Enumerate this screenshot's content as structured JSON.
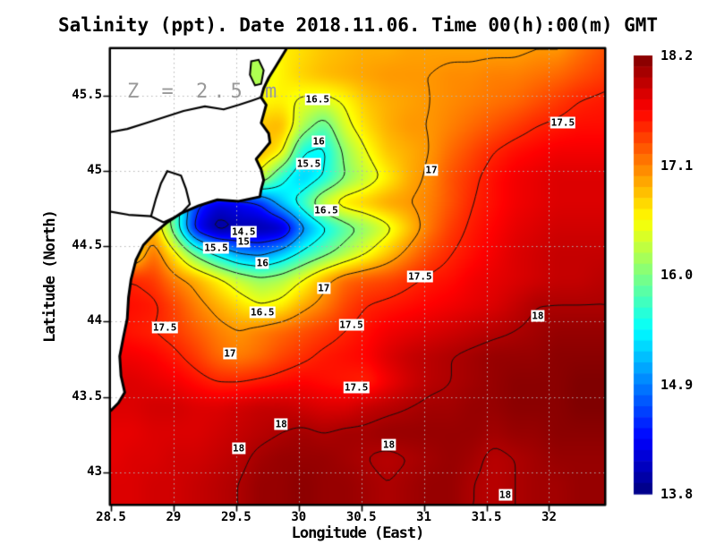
{
  "title": "Salinity (ppt). Date 2018.11.06. Time 00(h):00(m) GMT",
  "axes": {
    "x": {
      "label": "Longitude (East)",
      "ticks": [
        {
          "value": 28.5,
          "label": "28.5"
        },
        {
          "value": 29,
          "label": "29"
        },
        {
          "value": 29.5,
          "label": "29.5"
        },
        {
          "value": 30,
          "label": "30"
        },
        {
          "value": 30.5,
          "label": "30.5"
        },
        {
          "value": 31,
          "label": "31"
        },
        {
          "value": 31.5,
          "label": "31.5"
        },
        {
          "value": 32,
          "label": "32"
        }
      ]
    },
    "y": {
      "label": "Latitude (North)",
      "ticks": [
        {
          "value": 45.5,
          "label": "45.5"
        },
        {
          "value": 45,
          "label": "45"
        },
        {
          "value": 44.5,
          "label": "44.5"
        },
        {
          "value": 44,
          "label": "44"
        },
        {
          "value": 43.5,
          "label": "43.5"
        },
        {
          "value": 43,
          "label": "43"
        }
      ]
    }
  },
  "colorbar": {
    "min": 13.8,
    "max": 18.2,
    "steps": 40,
    "ticks": [
      {
        "value": 18.2,
        "label": "18.2"
      },
      {
        "value": 17.1,
        "label": "17.1"
      },
      {
        "value": 16.0,
        "label": "16.0"
      },
      {
        "value": 14.9,
        "label": "14.9"
      },
      {
        "value": 13.8,
        "label": "13.8"
      }
    ]
  },
  "chart_data": {
    "type": "heatmap",
    "variable": "Salinity (ppt)",
    "depth_annotation": "Z = 2.5 m",
    "lon_range": [
      28.5,
      32.44
    ],
    "lat_range": [
      42.79,
      45.81
    ],
    "colormap": "jet",
    "color_range": [
      13.8,
      18.2
    ],
    "land_color": "#ffffff",
    "gridline_color": "#b5b5b5",
    "gridline_lons": [
      29,
      29.5,
      30,
      30.5,
      31,
      31.5,
      32
    ],
    "gridline_lats": [
      43,
      43.5,
      44,
      44.5,
      45,
      45.5
    ],
    "contour_levels": [
      14,
      14.5,
      15,
      15.5,
      16,
      16.5,
      17,
      17.5,
      18
    ],
    "grid": {
      "lons": [
        28.5,
        28.67,
        28.84,
        29.01,
        29.18,
        29.35,
        29.52,
        29.69,
        29.86,
        30.03,
        30.2,
        30.37,
        30.54,
        30.71,
        30.88,
        31.05,
        31.22,
        31.39,
        31.56,
        31.73,
        31.9,
        32.07,
        32.24,
        32.44
      ],
      "lats": [
        45.81,
        45.64,
        45.47,
        45.3,
        45.13,
        44.96,
        44.79,
        44.62,
        44.45,
        44.28,
        44.11,
        43.94,
        43.77,
        43.6,
        43.43,
        43.26,
        43.09,
        42.92,
        42.79
      ],
      "values": [
        [
          16.6,
          16.6,
          16.6,
          16.6,
          16.6,
          16.6,
          16.3,
          16.2,
          16.6,
          16.7,
          16.8,
          16.85,
          16.9,
          16.9,
          16.95,
          16.95,
          16.95,
          16.95,
          16.95,
          16.95,
          17.0,
          17.0,
          17.15,
          17.3
        ],
        [
          16.6,
          16.6,
          16.6,
          16.6,
          16.6,
          16.6,
          16.35,
          16.4,
          16.6,
          16.75,
          16.85,
          16.9,
          16.95,
          17.0,
          17.0,
          17.0,
          17.05,
          17.05,
          17.1,
          17.1,
          17.15,
          17.2,
          17.3,
          17.4
        ],
        [
          16.6,
          16.6,
          16.6,
          16.6,
          16.6,
          16.6,
          16.5,
          16.55,
          16.6,
          16.45,
          16.4,
          16.55,
          16.8,
          16.9,
          16.95,
          17.0,
          17.05,
          17.1,
          17.15,
          17.2,
          17.3,
          17.4,
          17.5,
          17.55
        ],
        [
          16.6,
          16.6,
          16.6,
          16.6,
          16.6,
          16.6,
          16.6,
          16.8,
          16.9,
          16.2,
          15.8,
          16.4,
          16.7,
          16.9,
          17.0,
          17.0,
          17.1,
          17.2,
          17.3,
          17.4,
          17.5,
          17.55,
          17.6,
          17.6
        ],
        [
          16.6,
          16.6,
          16.6,
          16.6,
          16.6,
          16.6,
          16.6,
          16.9,
          16.6,
          15.5,
          15.4,
          16.1,
          16.5,
          16.8,
          16.9,
          17.0,
          17.2,
          17.35,
          17.5,
          17.6,
          17.65,
          17.7,
          17.7,
          17.7
        ],
        [
          16.6,
          16.6,
          16.6,
          16.6,
          16.6,
          16.6,
          16.6,
          16.4,
          15.6,
          15.2,
          15.5,
          16.0,
          16.3,
          16.6,
          16.9,
          17.05,
          17.3,
          17.45,
          17.6,
          17.7,
          17.75,
          17.8,
          17.8,
          17.8
        ],
        [
          16.6,
          16.6,
          16.6,
          15.8,
          14.6,
          14.2,
          14.3,
          14.5,
          15.2,
          15.7,
          16.4,
          16.7,
          16.8,
          16.95,
          17.0,
          17.1,
          17.3,
          17.5,
          17.6,
          17.7,
          17.75,
          17.8,
          17.8,
          17.8
        ],
        [
          16.6,
          16.6,
          16.9,
          15.8,
          14.3,
          13.85,
          14.0,
          13.95,
          14.0,
          14.9,
          15.4,
          15.8,
          16.1,
          16.4,
          16.8,
          17.15,
          17.4,
          17.55,
          17.65,
          17.75,
          17.8,
          17.85,
          17.85,
          17.85
        ],
        [
          16.6,
          16.6,
          17.2,
          16.6,
          15.9,
          15.4,
          15.0,
          14.9,
          15.2,
          15.6,
          15.9,
          16.2,
          16.5,
          16.8,
          17.1,
          17.35,
          17.5,
          17.6,
          17.7,
          17.8,
          17.85,
          17.9,
          17.9,
          17.9
        ],
        [
          17.5,
          17.5,
          17.4,
          17.1,
          16.9,
          16.6,
          16.3,
          16.1,
          16.2,
          16.5,
          16.9,
          17.2,
          17.3,
          17.35,
          17.45,
          17.55,
          17.6,
          17.7,
          17.75,
          17.8,
          17.85,
          17.9,
          17.9,
          17.95
        ],
        [
          17.6,
          17.6,
          17.55,
          17.35,
          17.1,
          16.9,
          16.7,
          16.5,
          16.6,
          16.9,
          17.1,
          17.35,
          17.5,
          17.55,
          17.6,
          17.65,
          17.7,
          17.75,
          17.8,
          17.9,
          18.0,
          18.0,
          18.0,
          18.0
        ],
        [
          17.6,
          17.55,
          17.5,
          17.4,
          17.25,
          17.1,
          17.0,
          17.1,
          17.2,
          17.3,
          17.4,
          17.5,
          17.6,
          17.7,
          17.75,
          17.8,
          17.85,
          17.9,
          17.95,
          18.0,
          18.05,
          18.1,
          18.1,
          18.1
        ],
        [
          17.7,
          17.7,
          17.65,
          17.55,
          17.4,
          17.2,
          17.1,
          17.2,
          17.35,
          17.45,
          17.55,
          17.6,
          17.65,
          17.8,
          17.9,
          17.95,
          18.0,
          18.05,
          18.1,
          18.1,
          18.1,
          18.15,
          18.15,
          18.15
        ],
        [
          17.8,
          17.8,
          17.75,
          17.7,
          17.6,
          17.5,
          17.5,
          17.55,
          17.6,
          17.65,
          17.6,
          17.55,
          17.5,
          17.7,
          17.85,
          17.95,
          18.0,
          18.05,
          18.1,
          18.15,
          18.15,
          18.15,
          18.2,
          18.2
        ],
        [
          17.8,
          17.8,
          17.85,
          17.85,
          17.8,
          17.8,
          17.85,
          17.9,
          17.9,
          17.85,
          17.8,
          17.8,
          17.9,
          17.95,
          18.0,
          18.05,
          18.05,
          18.1,
          18.1,
          18.15,
          18.15,
          18.15,
          18.2,
          18.2
        ],
        [
          17.75,
          17.75,
          17.8,
          17.8,
          17.8,
          17.85,
          17.9,
          17.95,
          18.0,
          18.05,
          18.0,
          18.05,
          18.05,
          18.1,
          18.1,
          18.1,
          18.1,
          18.1,
          18.05,
          18.1,
          18.1,
          18.15,
          18.15,
          18.15
        ],
        [
          17.75,
          17.8,
          17.8,
          17.85,
          17.85,
          17.9,
          17.95,
          18.05,
          18.1,
          18.1,
          18.1,
          18.05,
          18.0,
          17.95,
          18.0,
          18.05,
          18.1,
          18.05,
          17.95,
          18.0,
          18.05,
          18.1,
          18.1,
          18.1
        ],
        [
          17.8,
          17.8,
          17.85,
          17.85,
          17.9,
          17.95,
          18.0,
          18.1,
          18.1,
          18.15,
          18.1,
          18.1,
          18.05,
          18.0,
          18.05,
          18.1,
          18.1,
          18.0,
          17.95,
          18.0,
          18.05,
          18.05,
          18.1,
          18.1
        ],
        [
          17.8,
          17.8,
          17.85,
          17.85,
          17.9,
          17.95,
          18.0,
          18.1,
          18.1,
          18.15,
          18.1,
          18.1,
          18.05,
          18.0,
          18.05,
          18.1,
          18.1,
          18.0,
          17.95,
          18.0,
          18.05,
          18.05,
          18.1,
          18.1
        ]
      ]
    },
    "contour_labels": [
      {
        "lon": 30.15,
        "lat": 45.48,
        "text": "16.5"
      },
      {
        "lon": 30.16,
        "lat": 45.2,
        "text": "16"
      },
      {
        "lon": 30.08,
        "lat": 45.05,
        "text": "15.5"
      },
      {
        "lon": 30.22,
        "lat": 44.74,
        "text": "16.5"
      },
      {
        "lon": 31.06,
        "lat": 45.01,
        "text": "17"
      },
      {
        "lon": 32.11,
        "lat": 45.32,
        "text": "17.5"
      },
      {
        "lon": 29.56,
        "lat": 44.6,
        "text": "14.5"
      },
      {
        "lon": 29.56,
        "lat": 44.53,
        "text": "15"
      },
      {
        "lon": 29.34,
        "lat": 44.49,
        "text": "15.5"
      },
      {
        "lon": 29.71,
        "lat": 44.39,
        "text": "16"
      },
      {
        "lon": 29.71,
        "lat": 44.06,
        "text": "16.5"
      },
      {
        "lon": 30.2,
        "lat": 44.22,
        "text": "17"
      },
      {
        "lon": 28.93,
        "lat": 43.96,
        "text": "17.5"
      },
      {
        "lon": 30.42,
        "lat": 43.98,
        "text": "17.5"
      },
      {
        "lon": 30.97,
        "lat": 44.3,
        "text": "17.5"
      },
      {
        "lon": 29.45,
        "lat": 43.79,
        "text": "17"
      },
      {
        "lon": 30.46,
        "lat": 43.56,
        "text": "17.5"
      },
      {
        "lon": 31.91,
        "lat": 44.04,
        "text": "18"
      },
      {
        "lon": 29.86,
        "lat": 43.32,
        "text": "18"
      },
      {
        "lon": 29.52,
        "lat": 43.16,
        "text": "18"
      },
      {
        "lon": 30.72,
        "lat": 43.18,
        "text": "18"
      },
      {
        "lon": 31.65,
        "lat": 42.85,
        "text": "18"
      }
    ],
    "coastline": [
      [
        29.9,
        45.81
      ],
      [
        29.82,
        45.7
      ],
      [
        29.76,
        45.62
      ],
      [
        29.72,
        45.55
      ],
      [
        29.7,
        45.49
      ],
      [
        29.74,
        45.44
      ],
      [
        29.72,
        45.38
      ],
      [
        29.7,
        45.32
      ],
      [
        29.76,
        45.25
      ],
      [
        29.77,
        45.19
      ],
      [
        29.71,
        45.13
      ],
      [
        29.66,
        45.08
      ],
      [
        29.7,
        45.01
      ],
      [
        29.72,
        44.94
      ],
      [
        29.7,
        44.88
      ],
      [
        29.69,
        44.83
      ],
      [
        29.52,
        44.8
      ],
      [
        29.35,
        44.81
      ],
      [
        29.2,
        44.77
      ],
      [
        29.06,
        44.72
      ],
      [
        28.95,
        44.66
      ],
      [
        28.85,
        44.59
      ],
      [
        28.76,
        44.51
      ],
      [
        28.7,
        44.41
      ],
      [
        28.66,
        44.28
      ],
      [
        28.64,
        44.16
      ],
      [
        28.63,
        44.02
      ],
      [
        28.6,
        43.9
      ],
      [
        28.57,
        43.77
      ],
      [
        28.58,
        43.64
      ],
      [
        28.61,
        43.53
      ],
      [
        28.56,
        43.46
      ],
      [
        28.5,
        43.41
      ]
    ],
    "lake": [
      [
        29.62,
        45.73
      ],
      [
        29.68,
        45.74
      ],
      [
        29.72,
        45.67
      ],
      [
        29.7,
        45.58
      ],
      [
        29.65,
        45.57
      ],
      [
        29.61,
        45.64
      ],
      [
        29.62,
        45.73
      ]
    ],
    "lake_value": 16.2,
    "inner_lines": [
      [
        [
          28.5,
          45.26
        ],
        [
          28.63,
          45.28
        ],
        [
          28.78,
          45.32
        ],
        [
          28.93,
          45.36
        ],
        [
          29.08,
          45.4
        ],
        [
          29.25,
          45.43
        ],
        [
          29.4,
          45.41
        ],
        [
          29.52,
          45.44
        ],
        [
          29.63,
          45.47
        ],
        [
          29.7,
          45.49
        ]
      ],
      [
        [
          28.95,
          45.0
        ],
        [
          29.06,
          44.97
        ],
        [
          29.1,
          44.88
        ],
        [
          29.13,
          44.78
        ],
        [
          29.05,
          44.71
        ],
        [
          28.92,
          44.66
        ],
        [
          28.82,
          44.7
        ],
        [
          28.86,
          44.82
        ],
        [
          28.9,
          44.92
        ],
        [
          28.95,
          45.0
        ]
      ],
      [
        [
          28.5,
          44.73
        ],
        [
          28.64,
          44.71
        ],
        [
          28.82,
          44.7
        ]
      ]
    ]
  }
}
